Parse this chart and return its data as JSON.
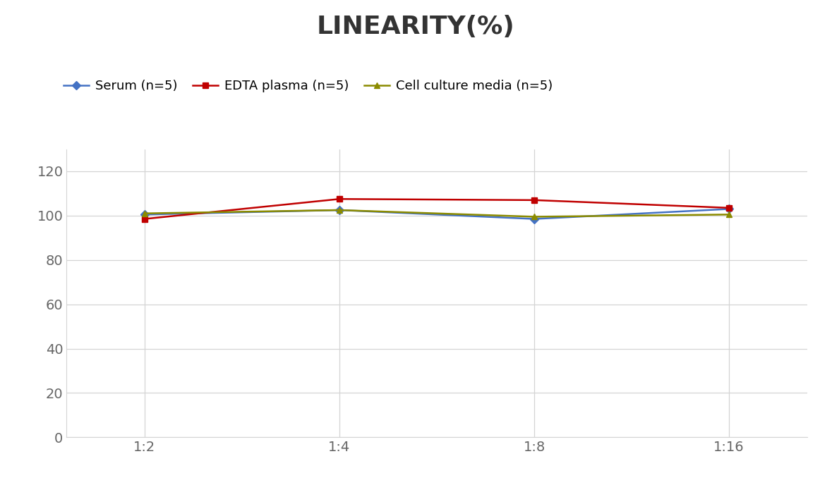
{
  "title": "LINEARITY(%)",
  "x_labels": [
    "1:2",
    "1:4",
    "1:8",
    "1:16"
  ],
  "x_positions": [
    0,
    1,
    2,
    3
  ],
  "serum": [
    100.5,
    102.5,
    98.5,
    103.0
  ],
  "edta": [
    98.5,
    107.5,
    107.0,
    103.5
  ],
  "cell": [
    101.0,
    102.5,
    99.5,
    100.5
  ],
  "serum_color": "#4472C4",
  "edta_color": "#C00000",
  "cell_color": "#8B8B00",
  "serum_label": "Serum (n=5)",
  "edta_label": "EDTA plasma (n=5)",
  "cell_label": "Cell culture media (n=5)",
  "ylim": [
    0,
    130
  ],
  "yticks": [
    0,
    20,
    40,
    60,
    80,
    100,
    120
  ],
  "title_fontsize": 26,
  "legend_fontsize": 13,
  "tick_fontsize": 14,
  "background_color": "#ffffff",
  "grid_color": "#d4d4d4"
}
